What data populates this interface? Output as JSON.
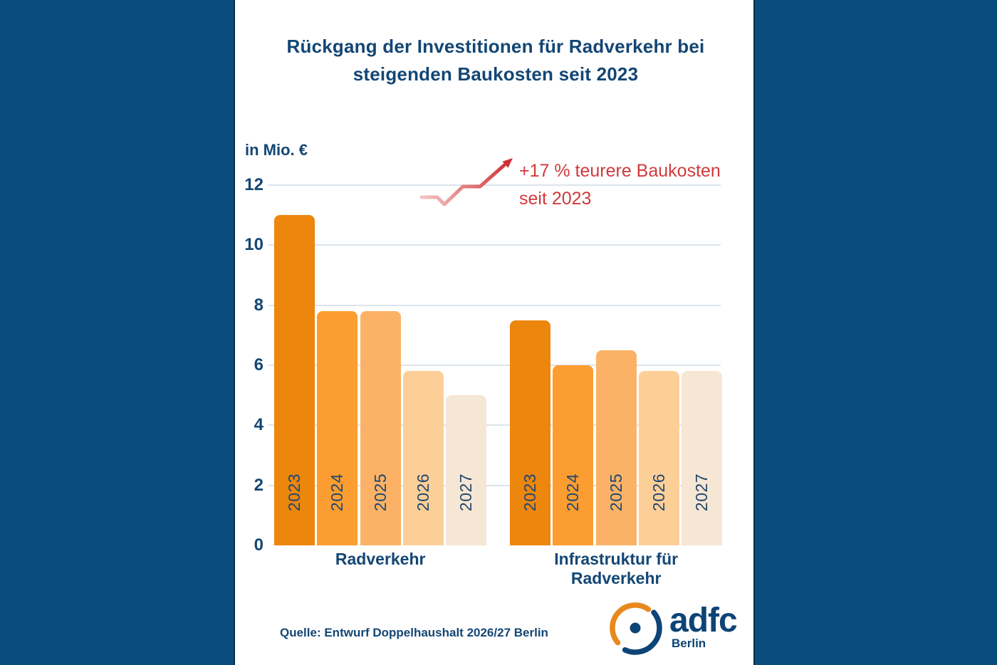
{
  "title": {
    "line1": "Rückgang der Investitionen für Radverkehr bei",
    "line2": "steigenden Baukosten seit 2023"
  },
  "chart_data": {
    "type": "bar",
    "title": "Rückgang der Investitionen für Radverkehr bei steigenden Baukosten seit 2023",
    "unit_label": "in Mio. €",
    "ylim": [
      0,
      12
    ],
    "yticks": [
      0,
      2,
      4,
      6,
      8,
      10,
      12
    ],
    "grid": true,
    "categories": [
      "2023",
      "2024",
      "2025",
      "2026",
      "2027"
    ],
    "groups": [
      {
        "label": "Radverkehr",
        "values": [
          11.0,
          7.8,
          7.8,
          5.8,
          5.0
        ]
      },
      {
        "label": "Infrastruktur für Radverkehr",
        "values": [
          7.5,
          6.0,
          6.5,
          5.8,
          5.8
        ]
      }
    ],
    "bar_colors": [
      "#ED860D",
      "#FB9D30",
      "#FBB266",
      "#FDCF98",
      "#F6E6D4"
    ],
    "annotation": {
      "line1": "+17 % teurere Baukosten",
      "line2": "seit 2023",
      "color": "#D13A3C"
    }
  },
  "source": {
    "text": "Quelle: Entwurf Doppelhaushalt 2026/27 Berlin"
  },
  "logo": {
    "word": "adfc",
    "sub": "Berlin",
    "orange": "#E8891D",
    "blue": "#0D4476"
  },
  "colors": {
    "side_background": "#0A4D7C",
    "panel_background": "#FFFFFF",
    "text_blue": "#134674",
    "gridline": "#DCE4EC",
    "annotation_red": "#D13A3C",
    "annotation_red_light": "#F5C4C2"
  }
}
